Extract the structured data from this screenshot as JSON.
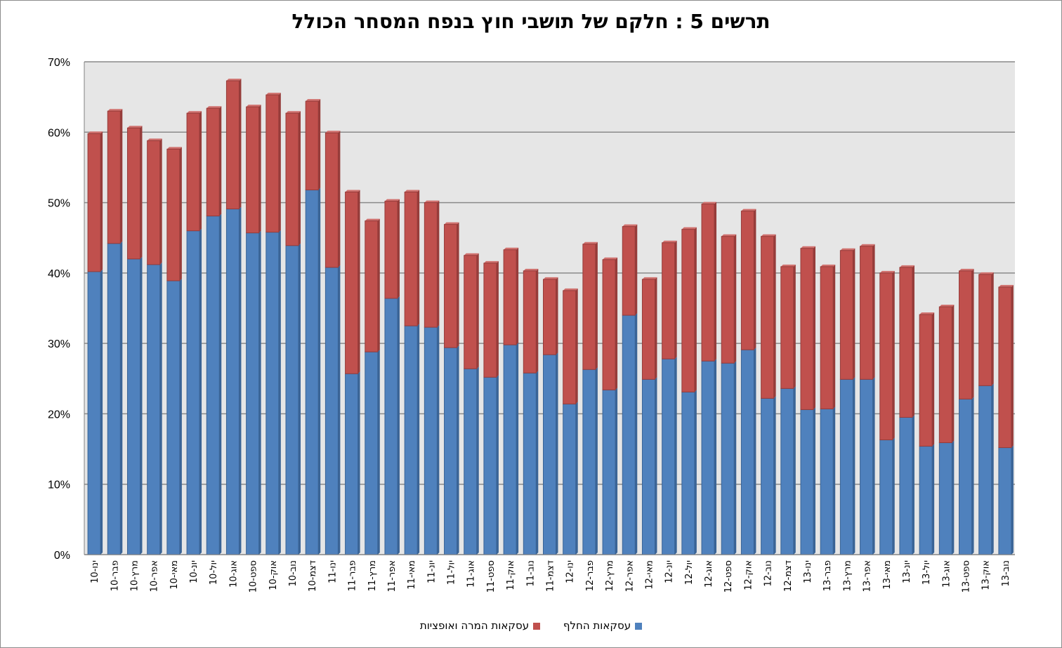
{
  "chart_data": {
    "type": "bar",
    "stacked": true,
    "title": "תרשים 5 : חלקם של תושבי חוץ בנפח המסחר הכולל",
    "categories": [
      "ינו-10",
      "פבר-10",
      "מרץ-10",
      "אפר-10",
      "מאי-10",
      "יונ-10",
      "יול-10",
      "אוג-10",
      "ספט-10",
      "אוק-10",
      "נוב-10",
      "דצמ-10",
      "ינו-11",
      "פבר-11",
      "מרץ-11",
      "אפר-11",
      "מאי-11",
      "יונ-11",
      "יול-11",
      "אוג-11",
      "ספט-11",
      "אוק-11",
      "נוב-11",
      "דצמ-11",
      "ינו-12",
      "פבר-12",
      "מרץ-12",
      "אפר-12",
      "מאי-12",
      "יונ-12",
      "יול-12",
      "אוג-12",
      "ספט-12",
      "אוק-12",
      "נוב-12",
      "דצמ-12",
      "ינו-13",
      "פבר-13",
      "מרץ-13",
      "אפר-13",
      "מאי-13",
      "יונ-13",
      "יול-13",
      "אוג-13",
      "ספט-13",
      "אוק-13",
      "נוב-13"
    ],
    "series": [
      {
        "name": "עסקאות החלף",
        "color": "#4f81bd",
        "values": [
          40.2,
          44.2,
          42.0,
          41.2,
          38.9,
          46.0,
          48.1,
          49.1,
          45.7,
          45.8,
          43.9,
          51.8,
          40.8,
          25.7,
          28.8,
          36.4,
          32.5,
          32.3,
          29.4,
          26.4,
          25.2,
          29.8,
          25.8,
          28.4,
          21.4,
          26.3,
          23.4,
          34.0,
          24.9,
          27.8,
          23.1,
          27.5,
          27.2,
          29.1,
          22.2,
          23.6,
          20.6,
          20.7,
          24.9,
          24.9,
          16.3,
          19.5,
          15.4,
          15.9,
          22.1,
          24.0,
          15.2
        ]
      },
      {
        "name": "עסקאות המרה ואופציות",
        "color": "#c0504d",
        "values": [
          19.6,
          18.8,
          18.6,
          17.6,
          18.7,
          16.7,
          15.3,
          18.2,
          17.9,
          19.5,
          18.8,
          12.6,
          19.1,
          25.8,
          18.6,
          13.8,
          19.0,
          17.7,
          17.5,
          16.1,
          16.2,
          13.5,
          14.5,
          10.7,
          16.1,
          17.8,
          18.5,
          12.6,
          14.2,
          16.5,
          23.1,
          22.3,
          18.0,
          19.7,
          23.0,
          17.3,
          22.9,
          20.2,
          18.3,
          18.9,
          23.7,
          21.3,
          18.7,
          19.3,
          18.2,
          15.8,
          22.8
        ]
      }
    ],
    "ylim": [
      0,
      70
    ],
    "yticks": [
      "0%",
      "10%",
      "20%",
      "30%",
      "40%",
      "50%",
      "60%",
      "70%"
    ],
    "grid": true,
    "legend_position": "bottom"
  }
}
